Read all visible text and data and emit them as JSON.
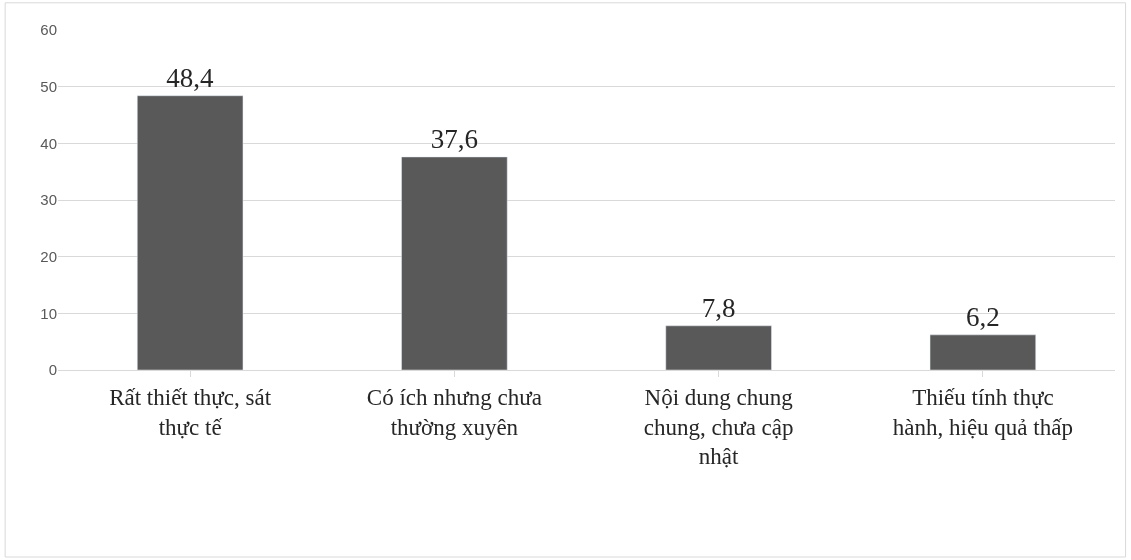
{
  "chart_data": {
    "type": "bar",
    "categories": [
      "Rất thiết thực, sát thực tế",
      "Có ích nhưng chưa thường xuyên",
      "Nội dung chung chung, chưa cập nhật",
      "Thiếu tính thực hành, hiệu quả thấp"
    ],
    "values": [
      48.4,
      37.6,
      7.8,
      6.2
    ],
    "color": "#595959",
    "value_labels": [
      "48,4",
      "37,6",
      "7,8",
      "6,2"
    ],
    "ylim": [
      0,
      60
    ],
    "yticks": [
      0,
      10,
      20,
      30,
      40,
      50,
      60
    ],
    "grid": "y",
    "legend": false
  }
}
